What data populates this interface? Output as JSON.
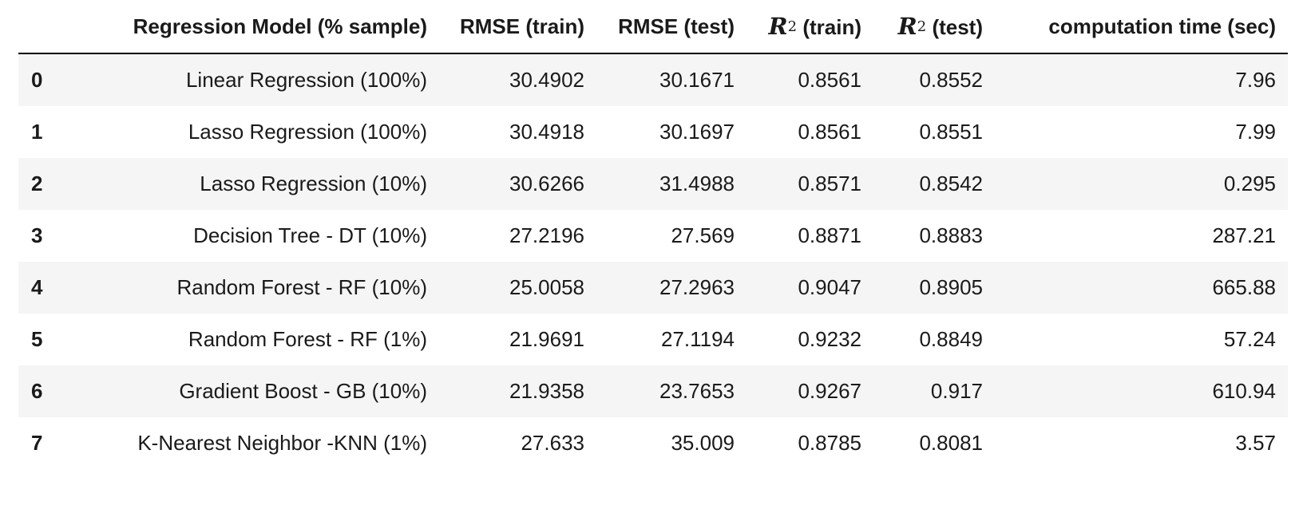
{
  "chart_data": {
    "type": "table",
    "columns": [
      "",
      "Regression Model (% sample)",
      "RMSE (train)",
      "RMSE (test)",
      "R2 (train)",
      "R2 (test)",
      "computation time (sec)"
    ],
    "header": {
      "model": "Regression Model (% sample)",
      "rmse_train": "RMSE (train)",
      "rmse_test": "RMSE (test)",
      "r2_symbol": "R",
      "r2_power": "2",
      "r2_train_suffix": " (train)",
      "r2_test_suffix": " (test)",
      "time": "computation time (sec)"
    },
    "rows": [
      [
        "0",
        "Linear Regression (100%)",
        "30.4902",
        "30.1671",
        "0.8561",
        "0.8552",
        "7.96"
      ],
      [
        "1",
        "Lasso Regression (100%)",
        "30.4918",
        "30.1697",
        "0.8561",
        "0.8551",
        "7.99"
      ],
      [
        "2",
        "Lasso Regression (10%)",
        "30.6266",
        "31.4988",
        "0.8571",
        "0.8542",
        "0.295"
      ],
      [
        "3",
        "Decision Tree - DT (10%)",
        "27.2196",
        "27.569",
        "0.8871",
        "0.8883",
        "287.21"
      ],
      [
        "4",
        "Random Forest - RF (10%)",
        "25.0058",
        "27.2963",
        "0.9047",
        "0.8905",
        "665.88"
      ],
      [
        "5",
        "Random Forest - RF (1%)",
        "21.9691",
        "27.1194",
        "0.9232",
        "0.8849",
        "57.24"
      ],
      [
        "6",
        "Gradient Boost - GB (10%)",
        "21.9358",
        "23.7653",
        "0.9267",
        "0.917",
        "610.94"
      ],
      [
        "7",
        "K-Nearest Neighbor -KNN (1%)",
        "27.633",
        "35.009",
        "0.8785",
        "0.8081",
        "3.57"
      ]
    ]
  }
}
